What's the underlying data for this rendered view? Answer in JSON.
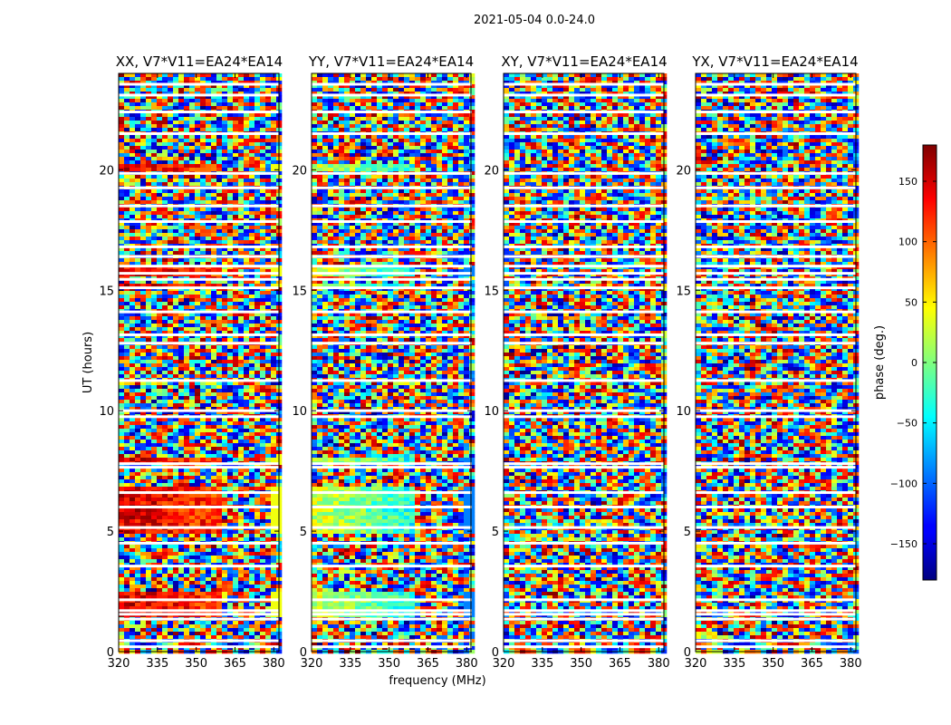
{
  "chart_data": {
    "type": "heatmap",
    "suptitle": "2021-05-04 0.0-24.0",
    "xlabel": "frequency (MHz)",
    "ylabel": "UT (hours)",
    "xlim": [
      320,
      382
    ],
    "ylim": [
      0,
      24
    ],
    "xticks": [
      320,
      335,
      350,
      365,
      380
    ],
    "yticks": [
      0,
      5,
      10,
      15,
      20
    ],
    "colorbar": {
      "label": "phase (deg.)",
      "range": [
        -180,
        180
      ],
      "ticks": [
        150,
        100,
        50,
        0,
        -50,
        -100,
        -150
      ],
      "tick_labels": [
        "150",
        "100",
        "50",
        "0",
        "−50",
        "−100",
        "−150"
      ],
      "colormap": "jet"
    },
    "panels": [
      {
        "title": "XX, V7*V11=EA24*EA14",
        "coherent": true,
        "coherent_phase": 150
      },
      {
        "title": "YY, V7*V11=EA24*EA14",
        "coherent": true,
        "coherent_phase": 30
      },
      {
        "title": "XY, V7*V11=EA24*EA14",
        "coherent": false
      },
      {
        "title": "YX, V7*V11=EA24*EA14",
        "coherent": false
      }
    ],
    "flagged_ut_hours": [
      0.2,
      0.45,
      1.35,
      1.55,
      1.7,
      2.15,
      3.55,
      4.5,
      5.15,
      6.0,
      6.6,
      7.65,
      7.8,
      9.75,
      10.0,
      11.25,
      12.8,
      13.15,
      14.1,
      15.1,
      15.45,
      15.7,
      16.0,
      16.4,
      16.8,
      17.85,
      18.5,
      19.25,
      19.85,
      21.5,
      22.4,
      23.1,
      23.55
    ]
  }
}
